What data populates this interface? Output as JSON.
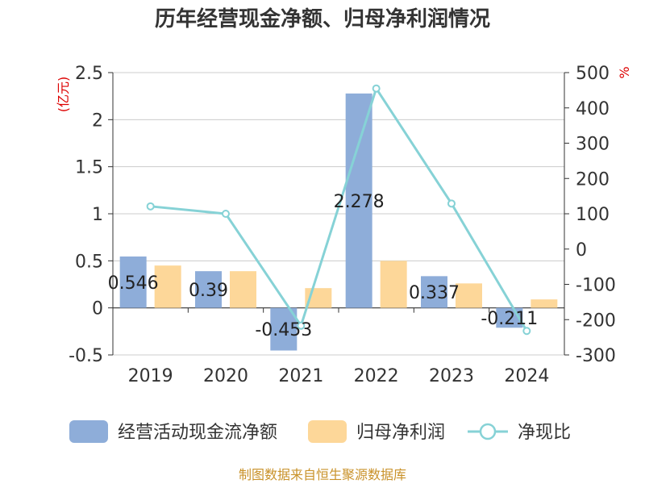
{
  "chart_data": {
    "type": "bar",
    "title": "历年经营现金净额、归母净利润情况",
    "categories": [
      "2019",
      "2020",
      "2021",
      "2022",
      "2023",
      "2024"
    ],
    "series": [
      {
        "name": "经营活动现金流净额",
        "kind": "bar",
        "axis": "left",
        "color": "#8eadd9",
        "values": [
          0.546,
          0.39,
          -0.453,
          2.278,
          0.337,
          -0.211
        ],
        "labels": [
          "0.546",
          "0.39",
          "-0.453",
          "2.278",
          "0.337",
          "-0.211"
        ]
      },
      {
        "name": "归母净利润",
        "kind": "bar",
        "axis": "left",
        "color": "#fdd799",
        "values": [
          0.45,
          0.39,
          0.21,
          0.5,
          0.26,
          0.09
        ]
      },
      {
        "name": "净现比",
        "kind": "line",
        "axis": "right",
        "color": "#86d2d6",
        "values": [
          121,
          100,
          -217,
          455,
          129,
          -232
        ]
      }
    ],
    "left_axis": {
      "unit": "(亿元)",
      "min": -0.5,
      "max": 2.5,
      "ticks": [
        "-0.5",
        "0",
        "0.5",
        "1",
        "1.5",
        "2",
        "2.5"
      ]
    },
    "right_axis": {
      "unit": "%",
      "min": -300,
      "max": 500,
      "ticks": [
        "-300",
        "-200",
        "-100",
        "0",
        "100",
        "200",
        "300",
        "400",
        "500"
      ]
    },
    "grid": true,
    "legend_position": "bottom",
    "source": "制图数据来自恒生聚源数据库"
  }
}
